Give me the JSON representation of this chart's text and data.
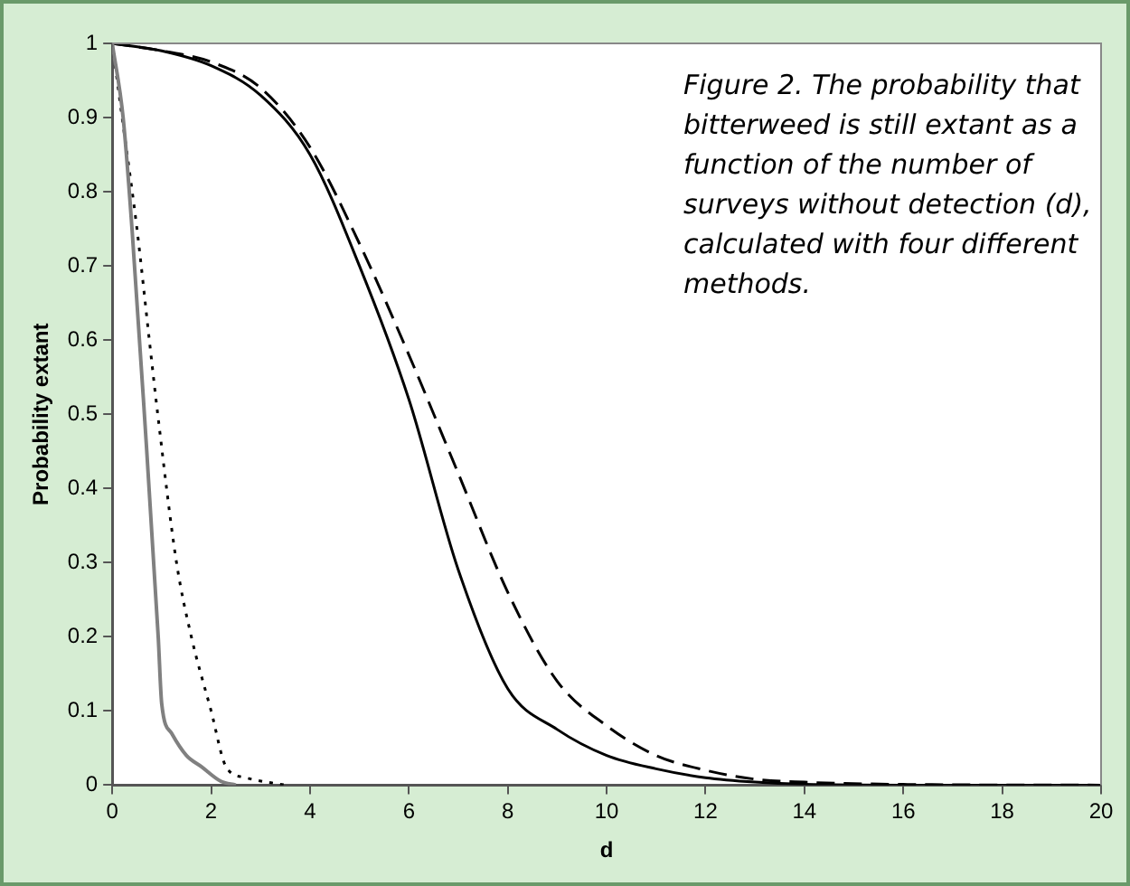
{
  "chart_data": {
    "type": "line",
    "xlabel": "d",
    "ylabel": "Probability extant",
    "annotations": [
      "Figure 2. The probability that bitterweed is still extant as a function of the number of surveys without detection (d), calculated with four different methods."
    ],
    "xlim": [
      0,
      20
    ],
    "xticks": [
      0,
      2,
      4,
      6,
      8,
      10,
      12,
      14,
      16,
      18,
      20
    ],
    "ylim": [
      0,
      1
    ],
    "yticks": [
      0,
      0.1,
      0.2,
      0.3,
      0.4,
      0.5,
      0.6,
      0.7,
      0.8,
      0.9,
      1
    ],
    "grid": false,
    "legend": false,
    "marker": "none",
    "series": [
      {
        "color": "#808080",
        "line_style": "solid",
        "x": [
          0,
          0.22,
          0.4,
          0.65,
          0.93,
          1,
          1.2,
          1.5,
          1.8,
          2.2,
          2.5
        ],
        "values": [
          1,
          0.9,
          0.75,
          0.5,
          0.2,
          0.11,
          0.07,
          0.04,
          0.025,
          0.005,
          0
        ]
      },
      {
        "color": "#000000",
        "line_style": "dotted",
        "x": [
          0,
          0.2,
          0.5,
          0.75,
          0.92,
          1.3,
          1.6,
          2,
          2.3,
          2.7,
          3.5
        ],
        "values": [
          1,
          0.9,
          0.75,
          0.6,
          0.5,
          0.3,
          0.2,
          0.1,
          0.025,
          0.01,
          0
        ]
      },
      {
        "color": "#000000",
        "line_style": "solid",
        "x": [
          0,
          1,
          2,
          3,
          4,
          5,
          6,
          7,
          8,
          9,
          10,
          11,
          12,
          13,
          14,
          16,
          20
        ],
        "values": [
          1,
          0.99,
          0.97,
          0.93,
          0.85,
          0.7,
          0.52,
          0.29,
          0.13,
          0.075,
          0.04,
          0.022,
          0.01,
          0.004,
          0.001,
          0,
          0
        ]
      },
      {
        "color": "#000000",
        "line_style": "dashed",
        "x": [
          0,
          1,
          2,
          3,
          4,
          5,
          6,
          7,
          8,
          9,
          10,
          11,
          12,
          13,
          14,
          16,
          20
        ],
        "values": [
          1,
          0.99,
          0.975,
          0.94,
          0.86,
          0.73,
          0.58,
          0.42,
          0.26,
          0.14,
          0.08,
          0.04,
          0.02,
          0.008,
          0.004,
          0.001,
          0
        ]
      }
    ]
  }
}
